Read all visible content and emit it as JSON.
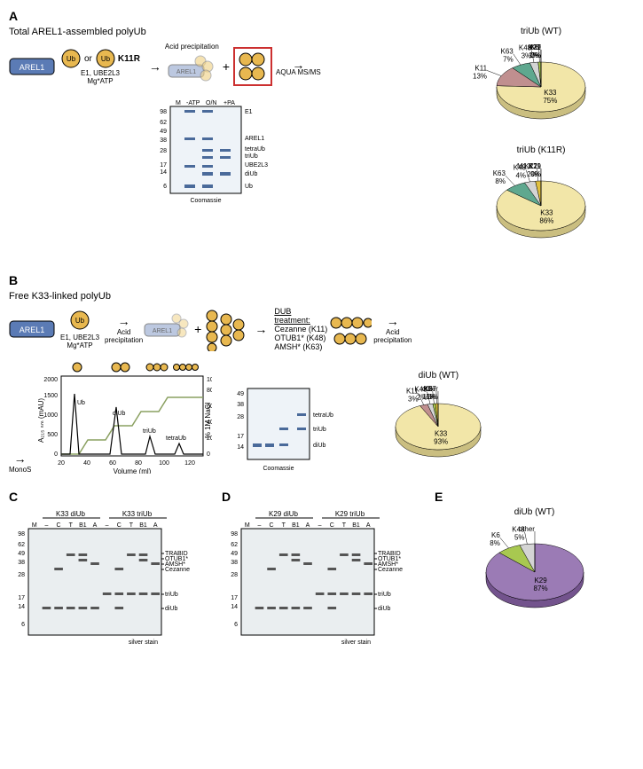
{
  "panelA": {
    "label": "A",
    "title": "Total AREL1-assembled polyUb",
    "arel1": "AREL1",
    "ub": "Ub",
    "or": "or",
    "k11r": "K11R",
    "enzymes": "E1, UBE2L3\nMg*ATP",
    "acid_precip": "Acid precipitation",
    "aqua": "AQUA MS/MS",
    "gel": {
      "lanes": [
        "M",
        "-ATP",
        "O/N",
        "+PA"
      ],
      "markers": [
        "98",
        "62",
        "49",
        "38",
        "28",
        "17",
        "14",
        "6"
      ],
      "bands": [
        "E1",
        "AREL1",
        "tetraUb",
        "triUb",
        "UBE2L3",
        "diUb",
        "Ub"
      ],
      "stain": "Coomassie"
    },
    "pie_wt": {
      "title": "triUb (WT)",
      "slices": [
        {
          "label": "K33",
          "pct": "75%",
          "value": 75,
          "color": "#f2e6a8"
        },
        {
          "label": "K11",
          "pct": "13%",
          "value": 13,
          "color": "#c08f8f"
        },
        {
          "label": "K63",
          "pct": "7%",
          "value": 7,
          "color": "#5fa88f"
        },
        {
          "label": "K48",
          "pct": "3%",
          "value": 3,
          "color": "#d4d4d4"
        },
        {
          "label": "K6",
          "pct": "1%",
          "value": 1,
          "color": "#a8c850"
        },
        {
          "label": "M1",
          "pct": "0%",
          "value": 0,
          "color": "#999999"
        },
        {
          "label": "K27",
          "pct": "0%",
          "value": 0,
          "color": "#e0c040"
        },
        {
          "label": "K29",
          "pct": "0%",
          "value": 0,
          "color": "#a070b0"
        }
      ]
    },
    "pie_k11r": {
      "title": "triUb (K11R)",
      "slices": [
        {
          "label": "K33",
          "pct": "86%",
          "value": 86,
          "color": "#f2e6a8"
        },
        {
          "label": "K63",
          "pct": "8%",
          "value": 8,
          "color": "#5fa88f"
        },
        {
          "label": "K48",
          "pct": "4%",
          "value": 4,
          "color": "#d4d4d4"
        },
        {
          "label": "K27",
          "pct": "2%",
          "value": 2,
          "color": "#e0c040"
        },
        {
          "label": "M1,K11",
          "pct": "0%",
          "value": 0,
          "color": "#999999"
        },
        {
          "label": "K29",
          "pct": "0%",
          "value": 0,
          "color": "#a070b0"
        }
      ]
    }
  },
  "panelB": {
    "label": "B",
    "title": "Free K33-linked polyUb",
    "arel1": "AREL1",
    "ub": "Ub",
    "enzymes": "E1, UBE2L3\nMg*ATP",
    "acid_precip": "Acid\nprecipitation",
    "dub_treatment": "DUB\ntreatment:",
    "dub_list": "Cezanne (K11)\nOTUB1* (K48)\nAMSH* (K63)",
    "monos": "MonoS",
    "chromatogram": {
      "ylabel": "A₂₁₅ ₙₘ (mAU)",
      "xlabel": "Volume (ml)",
      "y2label": "% 1M NaCl",
      "xlim": [
        20,
        130
      ],
      "ylim": [
        0,
        2000
      ],
      "y2lim": [
        0,
        100
      ],
      "xticks": [
        20,
        40,
        60,
        80,
        100,
        120
      ],
      "yticks": [
        0,
        500,
        1000,
        1500,
        2000
      ],
      "y2ticks": [
        0,
        20,
        40,
        60,
        80,
        100
      ],
      "peaks": [
        "Ub",
        "diUb",
        "triUb",
        "tetraUb"
      ],
      "trace_color": "#000000",
      "gradient_color": "#8aa060"
    },
    "gel2": {
      "markers": [
        "49",
        "38",
        "28",
        "17",
        "14"
      ],
      "bands": [
        "tetraUb",
        "triUb",
        "diUb"
      ],
      "stain": "Coomassie"
    },
    "pie_diub": {
      "title": "diUb (WT)",
      "slices": [
        {
          "label": "K33",
          "pct": "93%",
          "value": 93,
          "color": "#f2e6a8"
        },
        {
          "label": "K11",
          "pct": "3%",
          "value": 3,
          "color": "#c08f8f"
        },
        {
          "label": "K48",
          "pct": "2%",
          "value": 2,
          "color": "#d4d4d4"
        },
        {
          "label": "K6",
          "pct": "1%",
          "value": 1,
          "color": "#a8c850"
        },
        {
          "label": "K27",
          "pct": "1%",
          "value": 1,
          "color": "#e0c040"
        },
        {
          "label": "other",
          "pct": "0%",
          "value": 0,
          "color": "#999999"
        }
      ]
    }
  },
  "panelC": {
    "label": "C",
    "groups": [
      "K33 diUb",
      "K33 triUb"
    ],
    "lanes": [
      "M",
      "–",
      "C",
      "T",
      "B1",
      "A",
      "–",
      "C",
      "T",
      "B1",
      "A"
    ],
    "markers": [
      "98",
      "62",
      "49",
      "38",
      "28",
      "17",
      "14",
      "6"
    ],
    "band_labels": [
      "TRABID",
      "OTUB1*",
      "AMSH*",
      "Cezanne",
      "triUb",
      "diUb"
    ],
    "stain": "silver stain"
  },
  "panelD": {
    "label": "D",
    "groups": [
      "K29 diUb",
      "K29 triUb"
    ],
    "lanes": [
      "M",
      "–",
      "C",
      "T",
      "B1",
      "A",
      "–",
      "C",
      "T",
      "B1",
      "A"
    ],
    "markers": [
      "98",
      "62",
      "49",
      "38",
      "28",
      "17",
      "14",
      "6"
    ],
    "band_labels": [
      "TRABID",
      "OTUB1*",
      "AMSH*",
      "Cezanne",
      "triUb",
      "diUb"
    ],
    "stain": "silver stain"
  },
  "panelE": {
    "label": "E",
    "pie": {
      "title": "diUb (WT)",
      "slices": [
        {
          "label": "K29",
          "pct": "87%",
          "value": 87,
          "color": "#9b7bb5"
        },
        {
          "label": "K6",
          "pct": "8%",
          "value": 8,
          "color": "#a8c850"
        },
        {
          "label": "K48",
          "pct": "5%",
          "value": 5,
          "color": "#d4d4d4"
        },
        {
          "label": "other",
          "pct": "",
          "value": 0,
          "color": "#999999"
        }
      ]
    }
  },
  "colors": {
    "arel1_box": "#5b7bb5",
    "ub_circle": "#e8b850",
    "red_box": "#cc3030"
  }
}
